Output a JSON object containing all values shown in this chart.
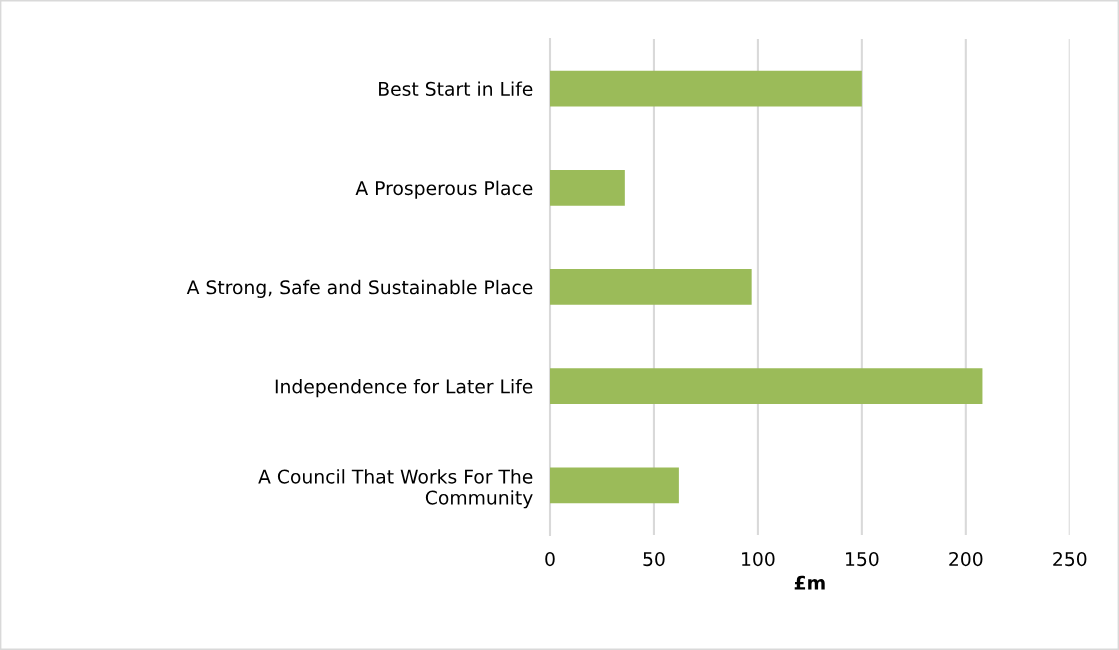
{
  "chart_data": {
    "type": "bar",
    "orientation": "horizontal",
    "xlabel": "£m",
    "categories": [
      "Best Start in Life",
      "A Prosperous Place",
      "A Strong, Safe and Sustainable Place",
      "Independence for Later Life",
      "A Council That Works For The\nCommunity"
    ],
    "values": [
      150,
      36,
      97,
      208,
      62
    ],
    "color": "#9bbb59",
    "xlim": [
      0,
      250
    ],
    "xticks": [
      0,
      50,
      100,
      150,
      200,
      250
    ],
    "grid": "x",
    "legend": false
  }
}
